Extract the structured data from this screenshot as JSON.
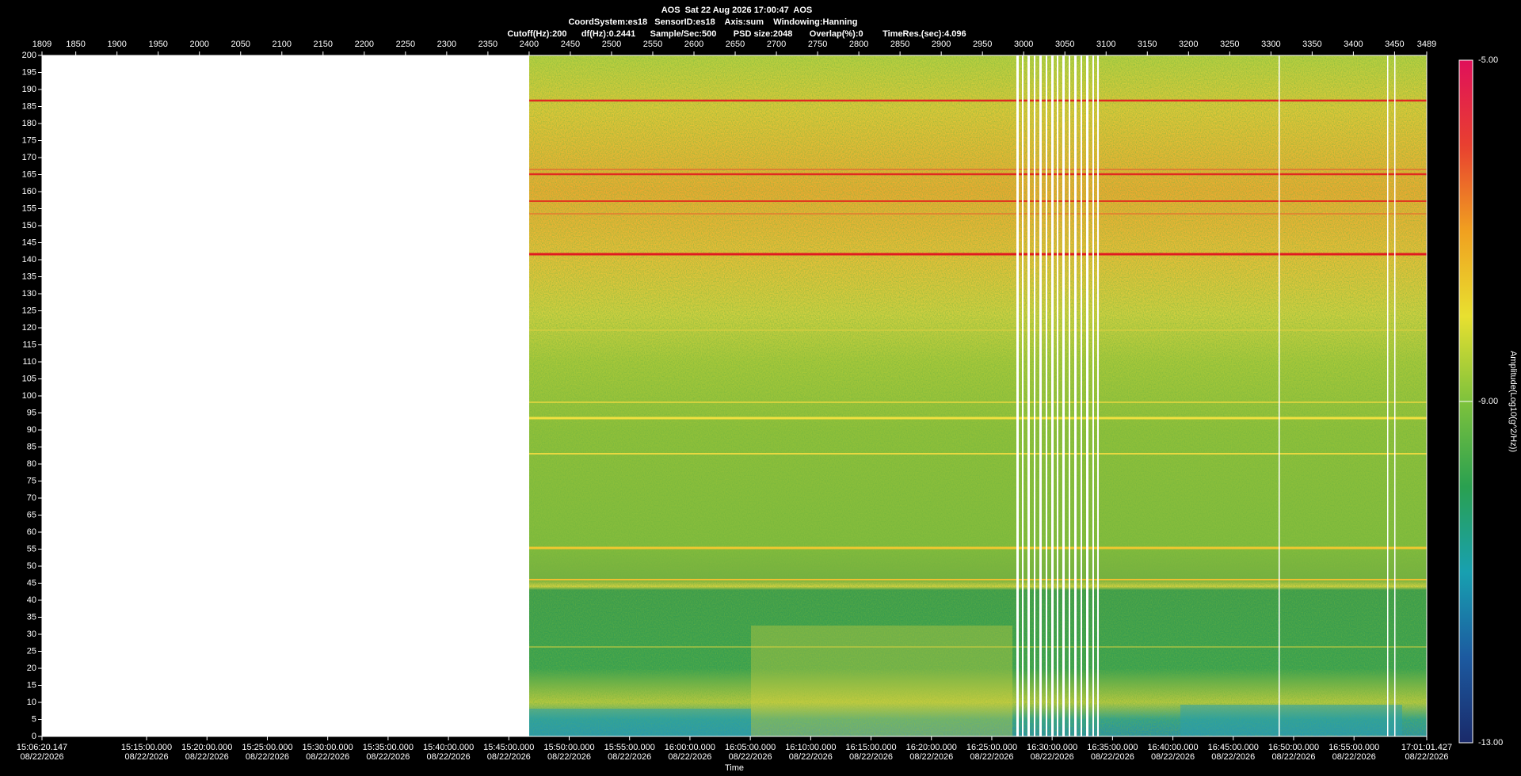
{
  "chart_data": {
    "type": "spectrogram",
    "title_lines": [
      "AOS  Sat 22 Aug 2026 17:00:47  AOS",
      "CoordSystem:es18   SensorID:es18    Axis:sum    Windowing:Hanning",
      "Cutoff(Hz):200      df(Hz):0.2441      Sample/Sec:500       PSD size:2048       Overlap(%):0        TimeRes.(sec):4.096"
    ],
    "xlabel": "Time",
    "colorbar_label": "Amplitude(Log10(g^2/Hz))",
    "xlim": [
      1809,
      3489
    ],
    "xticks": [
      1809,
      1850,
      1900,
      1950,
      2000,
      2050,
      2100,
      2150,
      2200,
      2250,
      2300,
      2350,
      2400,
      2450,
      2500,
      2550,
      2600,
      2650,
      2700,
      2750,
      2800,
      2850,
      2900,
      2950,
      3000,
      3050,
      3100,
      3150,
      3200,
      3250,
      3300,
      3350,
      3400,
      3450,
      3489
    ],
    "x2lim": [
      54380.147,
      61261.427
    ],
    "x2ticks": [
      {
        "value": 54380.147,
        "label": "15:06:20.147",
        "date": "08/22/2026"
      },
      {
        "value": 54900,
        "label": "15:15:00.000",
        "date": "08/22/2026"
      },
      {
        "value": 55200,
        "label": "15:20:00.000",
        "date": "08/22/2026"
      },
      {
        "value": 55500,
        "label": "15:25:00.000",
        "date": "08/22/2026"
      },
      {
        "value": 55800,
        "label": "15:30:00.000",
        "date": "08/22/2026"
      },
      {
        "value": 56100,
        "label": "15:35:00.000",
        "date": "08/22/2026"
      },
      {
        "value": 56400,
        "label": "15:40:00.000",
        "date": "08/22/2026"
      },
      {
        "value": 56700,
        "label": "15:45:00.000",
        "date": "08/22/2026"
      },
      {
        "value": 57000,
        "label": "15:50:00.000",
        "date": "08/22/2026"
      },
      {
        "value": 57300,
        "label": "15:55:00.000",
        "date": "08/22/2026"
      },
      {
        "value": 57600,
        "label": "16:00:00.000",
        "date": "08/22/2026"
      },
      {
        "value": 57900,
        "label": "16:05:00.000",
        "date": "08/22/2026"
      },
      {
        "value": 58200,
        "label": "16:10:00.000",
        "date": "08/22/2026"
      },
      {
        "value": 58500,
        "label": "16:15:00.000",
        "date": "08/22/2026"
      },
      {
        "value": 58800,
        "label": "16:20:00.000",
        "date": "08/22/2026"
      },
      {
        "value": 59100,
        "label": "16:25:00.000",
        "date": "08/22/2026"
      },
      {
        "value": 59400,
        "label": "16:30:00.000",
        "date": "08/22/2026"
      },
      {
        "value": 59700,
        "label": "16:35:00.000",
        "date": "08/22/2026"
      },
      {
        "value": 60000,
        "label": "16:40:00.000",
        "date": "08/22/2026"
      },
      {
        "value": 60300,
        "label": "16:45:00.000",
        "date": "08/22/2026"
      },
      {
        "value": 60600,
        "label": "16:50:00.000",
        "date": "08/22/2026"
      },
      {
        "value": 60900,
        "label": "16:55:00.000",
        "date": "08/22/2026"
      },
      {
        "value": 61261.427,
        "label": "17:01:01.427",
        "date": "08/22/2026"
      }
    ],
    "ylim": [
      0,
      200
    ],
    "yticks": [
      0,
      5,
      10,
      15,
      20,
      25,
      30,
      35,
      40,
      45,
      50,
      55,
      60,
      65,
      70,
      75,
      80,
      85,
      90,
      95,
      100,
      105,
      110,
      115,
      120,
      125,
      130,
      135,
      140,
      145,
      150,
      155,
      160,
      165,
      170,
      175,
      180,
      185,
      190,
      195,
      200
    ],
    "clim": [
      -13,
      -5
    ],
    "cticks": [
      {
        "value": -5,
        "label": "-5.00"
      },
      {
        "value": -9,
        "label": "-9.00"
      },
      {
        "value": -13,
        "label": "-13.00"
      }
    ],
    "colormap": [
      "#1a2a6a",
      "#1c5aa0",
      "#18a0b0",
      "#2aa050",
      "#7ec23c",
      "#e8e030",
      "#f0a020",
      "#e84030",
      "#e0105a"
    ]
  }
}
